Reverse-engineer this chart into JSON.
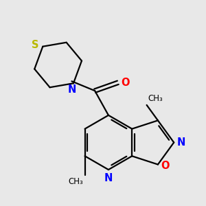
{
  "bg_color": "#e8e8e8",
  "bond_color": "#000000",
  "atom_colors": {
    "N": "#0000ff",
    "O": "#ff0000",
    "S": "#b8b800"
  },
  "bond_width": 1.6,
  "font_size": 10.5
}
